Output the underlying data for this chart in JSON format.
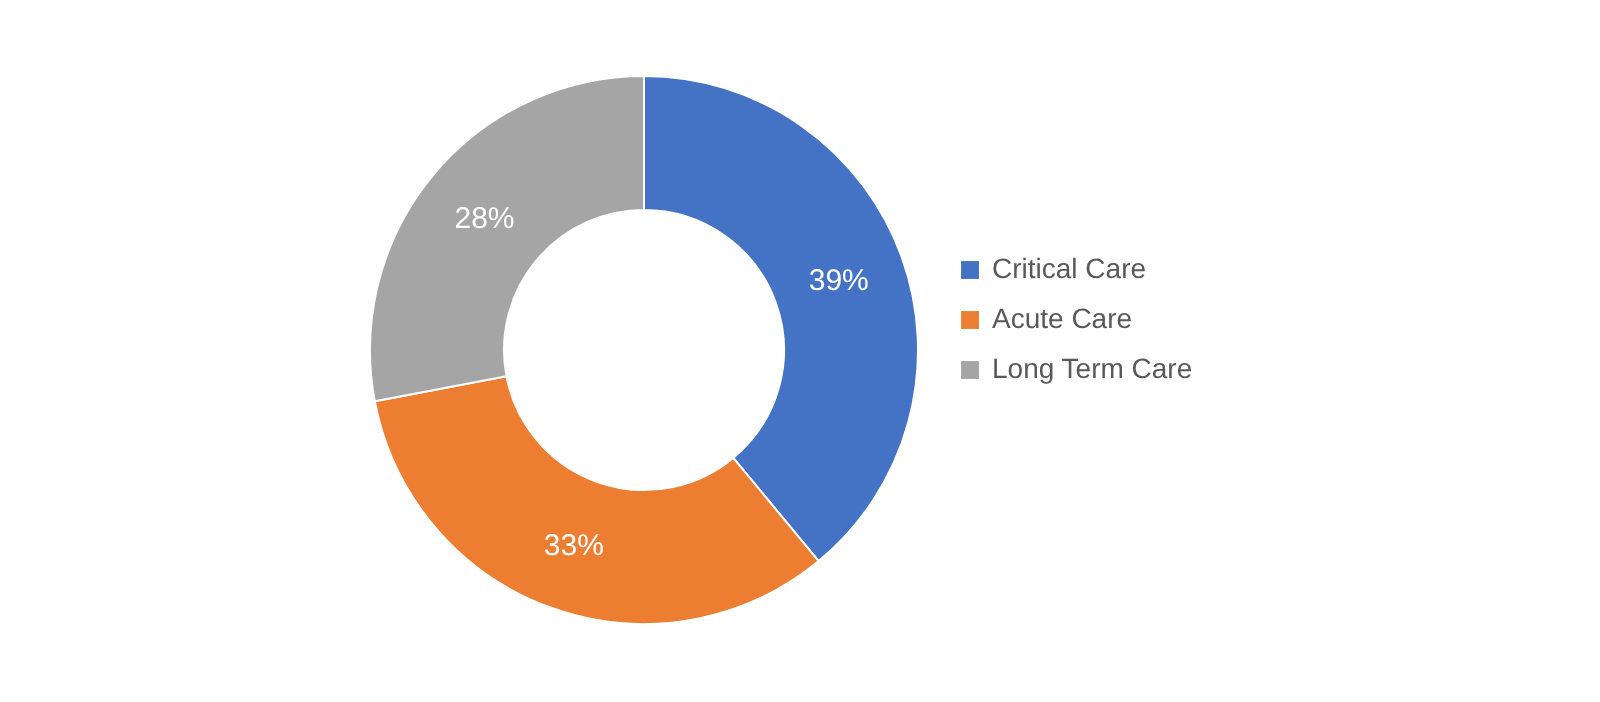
{
  "chart_data": {
    "type": "donut",
    "categories": [
      "Critical Care",
      "Acute Care",
      "Long Term Care"
    ],
    "values": [
      39,
      33,
      28
    ],
    "colors": [
      "#4472c4",
      "#ed7d31",
      "#a5a5a5"
    ],
    "value_labels": [
      "39%",
      "33%",
      "28%"
    ],
    "legend": "right"
  }
}
